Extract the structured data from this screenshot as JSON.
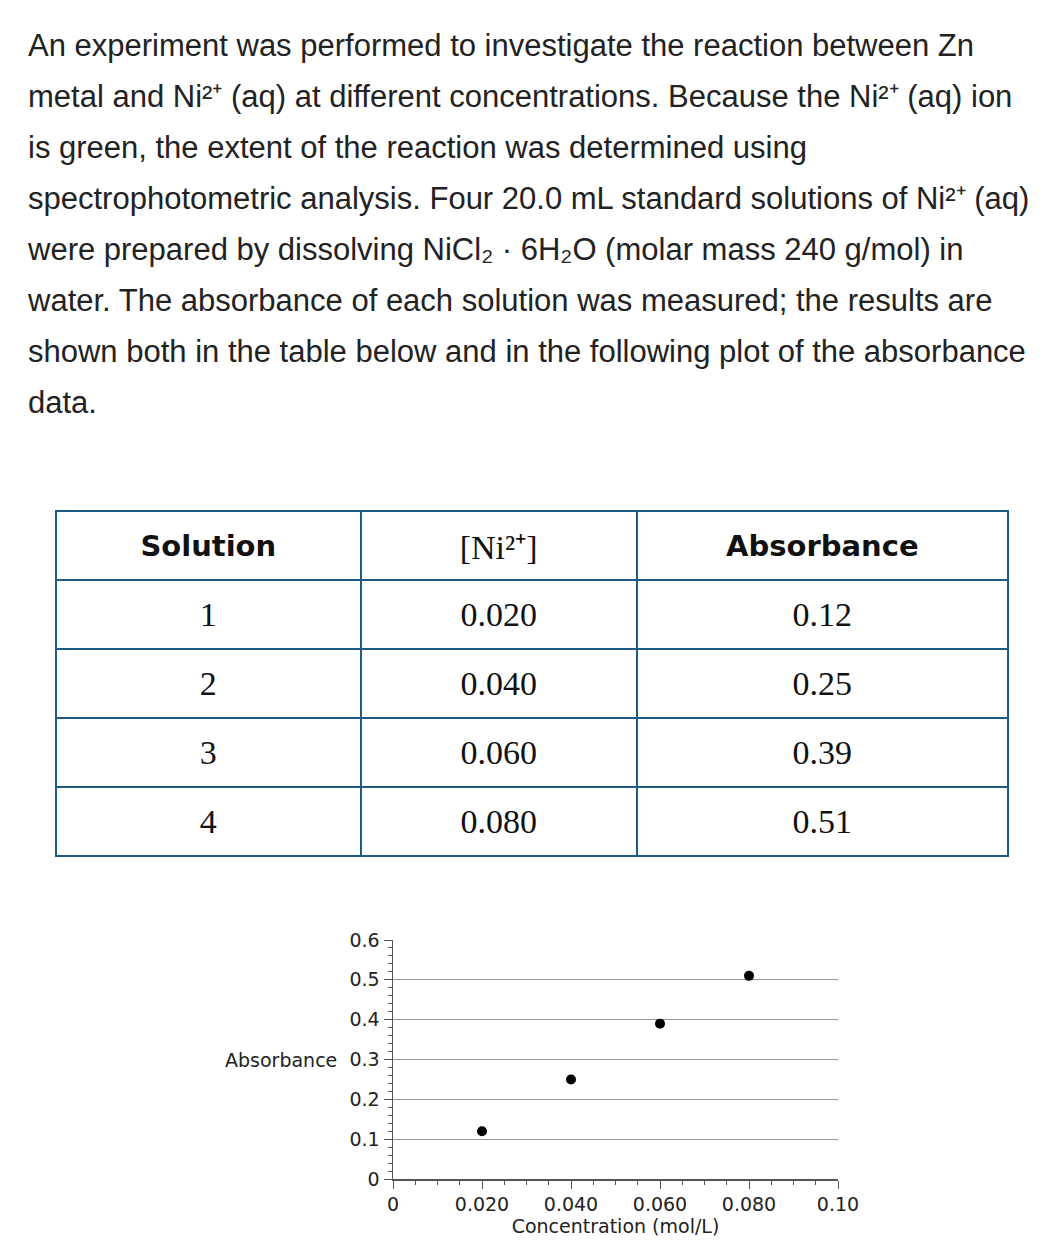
{
  "paragraph": "An experiment was performed to investigate the reaction between Zn metal and Ni²⁺ (aq) at different concentrations. Because the Ni²⁺ (aq) ion is green, the extent of the reaction was determined using spectrophotometric analysis. Four 20.0 mL standard solutions of Ni²⁺ (aq) were prepared by dissolving NiCl₂ · 6H₂O (molar mass 240 g/mol) in water. The absorbance of each solution was measured; the results are shown both in the table below and in the following plot of the absorbance data.",
  "table": {
    "header": [
      "Solution",
      "[Ni²⁺]",
      "Absorbance"
    ],
    "rows": [
      [
        "1",
        "0.020",
        "0.12"
      ],
      [
        "2",
        "0.040",
        "0.25"
      ],
      [
        "3",
        "0.060",
        "0.39"
      ],
      [
        "4",
        "0.080",
        "0.51"
      ]
    ]
  },
  "chart_data": {
    "type": "scatter",
    "x_label": "Concentration (mol/L)",
    "y_label": "Absorbance",
    "x": [
      0.02,
      0.04,
      0.06,
      0.08
    ],
    "values": [
      0.12,
      0.25,
      0.39,
      0.51
    ],
    "color": "#000000",
    "xlim": [
      0,
      0.1
    ],
    "xticks": [
      0,
      {
        "value": 0.02,
        "label": "0.020"
      },
      {
        "value": 0.04,
        "label": "0.040"
      },
      {
        "value": 0.06,
        "label": "0.060"
      },
      {
        "value": 0.08,
        "label": "0.080"
      },
      {
        "value": 0.1,
        "label": "0.10"
      }
    ],
    "ylim": [
      0,
      0.6
    ],
    "yticks": [
      0,
      0.1,
      0.2,
      0.3,
      0.4,
      0.5,
      0.6
    ],
    "grid": "y"
  }
}
